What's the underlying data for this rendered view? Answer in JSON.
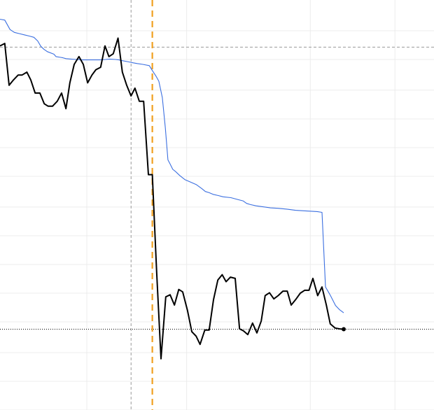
{
  "chart_data": {
    "type": "line",
    "title": "",
    "xlabel": "",
    "ylabel": "",
    "grid": true,
    "legend": "none",
    "xlim": [
      0,
      100
    ],
    "ylim": [
      0,
      100
    ],
    "x_gridlines": [
      20,
      43,
      71.5,
      91
    ],
    "y_gridlines": [
      0,
      7,
      14,
      21.5,
      28.5,
      35.5,
      42.5,
      49.5,
      57,
      64,
      71,
      78,
      85.5,
      92.5
    ],
    "markers": {
      "vertical_dashed_gray_x": 30.2,
      "vertical_dashed_orange_x": 35.1,
      "horizontal_dashed_gray_y": 88.5,
      "horizontal_dotted_black_y": 19.7
    },
    "colors": {
      "main_line": "#000000",
      "blue_line": "#3b6fe0",
      "orange_marker": "#f0a020",
      "gray_marker": "#999999",
      "grid": "#ececec"
    },
    "series": [
      {
        "color": "#000000",
        "x": [
          0,
          1.1,
          2.1,
          3.1,
          4.2,
          5.1,
          6.2,
          7.1,
          8.1,
          9.2,
          10.2,
          11.1,
          12.1,
          13.2,
          14.2,
          15.2,
          16.1,
          17.1,
          18.2,
          19.2,
          20.2,
          21.2,
          22.1,
          23.2,
          24.2,
          25.1,
          26.1,
          27.2,
          28.2,
          29.2,
          30.2,
          31.1,
          32.1,
          33.1,
          34.2,
          35.1,
          36.1,
          37.1,
          38.2,
          39.2,
          40.2,
          41.2,
          42.1,
          43.2,
          44.2,
          45.2,
          46.1,
          47.2,
          48.2,
          49.2,
          50.2,
          51.2,
          52.1,
          53.1,
          54.2,
          55.2,
          56.1,
          57.1,
          58.2,
          59.2,
          60.2,
          61.1,
          62.1,
          63.1,
          64.1,
          65.2,
          66.2,
          67.1,
          68.1,
          69.2,
          70.2,
          71.2,
          72.1,
          73.2,
          74.2,
          75.2,
          76.1,
          77.2,
          78.2,
          79.2
        ],
        "y": [
          88.8,
          89.4,
          79.2,
          80.5,
          81.7,
          81.7,
          82.4,
          80.5,
          77.3,
          77.3,
          74.7,
          74.1,
          74.1,
          75.3,
          77.3,
          73.5,
          79.8,
          84.3,
          86.2,
          84.3,
          79.8,
          81.7,
          83.0,
          83.6,
          88.8,
          86.2,
          86.9,
          90.7,
          82.4,
          79.2,
          76.6,
          78.5,
          75.3,
          75.3,
          57.4,
          57.4,
          33.6,
          12.5,
          27.6,
          28.1,
          25.6,
          29.4,
          28.8,
          24.3,
          19.1,
          18.0,
          16.0,
          19.5,
          19.5,
          26.9,
          31.7,
          33.0,
          31.3,
          32.4,
          32.1,
          19.8,
          19.3,
          18.4,
          21.2,
          18.8,
          21.7,
          27.9,
          28.6,
          27.1,
          27.9,
          29.0,
          29.0,
          25.6,
          26.9,
          28.5,
          29.2,
          29.2,
          32.1,
          27.9,
          30.0,
          25.6,
          21.0,
          20.0,
          19.8,
          19.7
        ]
      },
      {
        "color": "#3b6fe0",
        "x": [
          0,
          1.1,
          2.3,
          3.3,
          4.5,
          5.6,
          6.8,
          7.8,
          8.7,
          9.4,
          10.1,
          10.9,
          12.4,
          12.9,
          14.0,
          14.5,
          15.2,
          16.3,
          17.7,
          18.7,
          20.2,
          21.2,
          23.1,
          24.3,
          25.2,
          26.6,
          27.4,
          28.2,
          29.7,
          30.6,
          31.6,
          32.9,
          34.4,
          35.1,
          35.9,
          36.6,
          37.4,
          38.1,
          38.7,
          39.2,
          39.8,
          40.4,
          41.4,
          42.6,
          43.9,
          45.2,
          46.5,
          47.3,
          48.2,
          49.1,
          50.3,
          51.4,
          53.2,
          54.9,
          56.0,
          56.8,
          57.7,
          59.0,
          60.3,
          62.3,
          64.0,
          66.1,
          68.1,
          69.7,
          71.4,
          73.1,
          74.2,
          75.0,
          76.1,
          77.3,
          78.2,
          79.2
        ],
        "y": [
          95.3,
          95.1,
          92.8,
          92.1,
          91.8,
          91.5,
          91.2,
          90.9,
          90.0,
          88.7,
          88.0,
          87.4,
          86.8,
          86.2,
          86.0,
          85.9,
          85.7,
          85.6,
          85.5,
          85.4,
          85.4,
          85.4,
          85.4,
          85.5,
          85.6,
          85.5,
          85.4,
          85.2,
          84.9,
          84.7,
          84.5,
          84.3,
          84.0,
          82.8,
          81.5,
          80.2,
          76.2,
          68.8,
          61.0,
          60.0,
          58.7,
          58.2,
          57.2,
          56.2,
          55.6,
          55.0,
          54.0,
          53.3,
          53.0,
          52.6,
          52.3,
          52.0,
          51.8,
          51.3,
          51.0,
          50.4,
          50.1,
          49.8,
          49.6,
          49.3,
          49.2,
          49.0,
          48.7,
          48.6,
          48.5,
          48.4,
          48.2,
          30.0,
          28.0,
          25.5,
          24.5,
          23.7
        ]
      }
    ]
  }
}
